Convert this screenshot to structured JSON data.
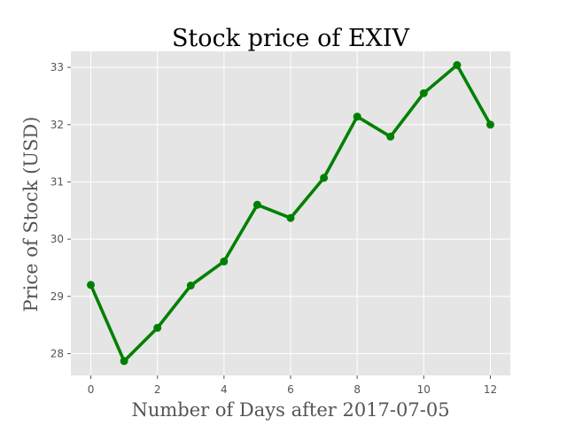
{
  "chart_data": {
    "type": "line",
    "title": "Stock price of EXIV",
    "xlabel": "Number of Days after 2017-07-05",
    "ylabel": "Price of Stock (USD)",
    "x": [
      0,
      1,
      2,
      3,
      4,
      5,
      6,
      7,
      8,
      9,
      10,
      11,
      12
    ],
    "series": [
      {
        "values": [
          29.2,
          27.87,
          28.45,
          29.19,
          29.61,
          30.6,
          30.37,
          31.07,
          32.14,
          31.79,
          32.55,
          33.04,
          32.0
        ],
        "color": "#008000",
        "marker": "circle"
      }
    ],
    "xlim": [
      -0.6,
      12.6
    ],
    "ylim": [
      27.62,
      33.28
    ],
    "xticks": [
      0,
      2,
      4,
      6,
      8,
      10,
      12
    ],
    "yticks": [
      28,
      29,
      30,
      31,
      32,
      33
    ],
    "grid": true,
    "style": {
      "plot_background": "#e5e5e5",
      "grid_color": "#ffffff",
      "tick_color": "#555555"
    }
  }
}
